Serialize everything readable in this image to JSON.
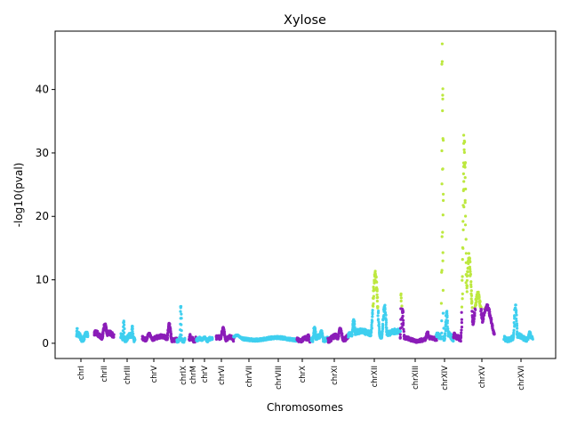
{
  "chart_data": {
    "type": "scatter",
    "title": "Xylose",
    "xlabel": "Chromosomes",
    "ylabel": "-log10(pval)",
    "ylim": [
      -2.4,
      49.2
    ],
    "yticks": [
      0,
      10,
      20,
      30,
      40
    ],
    "grid": false,
    "legend": "none",
    "colors": {
      "cyan": "#3fcfef",
      "purple": "#8b1db8",
      "significant": "#bde83f"
    },
    "categories": [
      "chrI",
      "chrII",
      "chrIII",
      "chrV",
      "chrIX",
      "chrM",
      "chrV",
      "chrVI",
      "chrVII",
      "chrVIII",
      "chrX",
      "chrXI",
      "chrXII",
      "chrXIII",
      "chrXIV",
      "chrXV",
      "chrXVI"
    ],
    "chromosomes": [
      {
        "label": "chrI",
        "color": "cyan",
        "base": 1.0,
        "amp": 0.8,
        "peaks": [
          [
            0.05,
            2.6,
            0.03
          ]
        ]
      },
      {
        "label": "chrII",
        "color": "purple",
        "base": 1.3,
        "amp": 0.7,
        "peaks": [
          [
            0.55,
            3.1,
            0.12
          ]
        ]
      },
      {
        "label": "chrIII",
        "color": "cyan",
        "base": 0.9,
        "amp": 0.7,
        "peaks": [
          [
            0.2,
            3.6,
            0.04
          ],
          [
            0.8,
            2.8,
            0.05
          ]
        ]
      },
      {
        "label": "chrV",
        "color": "purple",
        "base": 0.8,
        "amp": 0.6,
        "peaks": [
          [
            0.78,
            3.2,
            0.05
          ],
          [
            0.2,
            1.6,
            0.08
          ]
        ]
      },
      {
        "label": "chrIX",
        "color": "cyan",
        "base": 0.6,
        "amp": 0.5,
        "peaks": [
          [
            0.5,
            6.0,
            0.08
          ]
        ]
      },
      {
        "label": "chrM",
        "color": "purple",
        "base": 0.6,
        "amp": 0.5,
        "peaks": [
          [
            0.1,
            1.4,
            0.08
          ]
        ]
      },
      {
        "label": "chrV",
        "color": "cyan",
        "base": 0.5,
        "amp": 0.5,
        "peaks": [
          [
            0.5,
            1.0,
            0.15
          ]
        ]
      },
      {
        "label": "chrVI",
        "color": "purple",
        "base": 0.7,
        "amp": 0.6,
        "peaks": [
          [
            0.4,
            2.5,
            0.12
          ]
        ]
      },
      {
        "label": "chrVII",
        "color": "cyan",
        "base": 0.7,
        "amp": 0.4,
        "peaks": [
          [
            0.05,
            1.3,
            0.1
          ]
        ]
      },
      {
        "label": "chrVIII",
        "color": "purple",
        "base": 0.6,
        "amp": 0.5,
        "peaks": [
          [
            0.8,
            1.4,
            0.08
          ]
        ]
      },
      {
        "label": "chrX",
        "color": "cyan",
        "base": 0.8,
        "amp": 0.6,
        "peaks": [
          [
            0.2,
            2.6,
            0.08
          ],
          [
            0.6,
            2.0,
            0.1
          ]
        ]
      },
      {
        "label": "chrXI",
        "color": "purple",
        "base": 0.8,
        "amp": 0.7,
        "peaks": [
          [
            0.6,
            2.4,
            0.1
          ]
        ]
      },
      {
        "label": "chrXII",
        "color": "cyan",
        "base": 1.5,
        "amp": 0.8,
        "peaks": [
          [
            0.1,
            3.8,
            0.03
          ],
          [
            0.52,
            11.2,
            0.06
          ],
          [
            0.7,
            6.0,
            0.04
          ]
        ],
        "sig": [
          0.42,
          0.62
        ]
      },
      {
        "label": "chrXIII",
        "color": "purple",
        "base": 0.6,
        "amp": 0.5,
        "peaks": [
          [
            0.03,
            8.0,
            0.015
          ],
          [
            0.07,
            5.5,
            0.03
          ],
          [
            0.75,
            1.8,
            0.05
          ]
        ],
        "sig": [
          0.0,
          0.06
        ]
      },
      {
        "label": "chrXIV",
        "color": "cyan",
        "base": 1.0,
        "amp": 0.8,
        "peaks": [
          [
            0.35,
            41.5,
            0.035
          ],
          [
            0.6,
            5.0,
            0.08
          ]
        ],
        "sig": [
          0.24,
          0.46
        ],
        "extra": [
          47.2,
          44.4,
          44.0,
          38.5,
          32.0,
          27.5,
          23.5,
          22.5,
          17.5,
          13.0,
          11.5
        ]
      },
      {
        "label": "chrXV",
        "color": "purple",
        "base": 1.0,
        "amp": 0.8,
        "peaks": [
          [
            0.27,
            32.0,
            0.045
          ],
          [
            0.38,
            14.0,
            0.08
          ],
          [
            0.6,
            8.0,
            0.12
          ],
          [
            0.82,
            6.0,
            0.15
          ]
        ],
        "sig": [
          0.2,
          0.8
        ],
        "extra": [
          32.8,
          31.5,
          25.5,
          22.5,
          21.5
        ]
      },
      {
        "label": "chrXVI",
        "color": "cyan",
        "base": 0.9,
        "amp": 0.7,
        "peaks": [
          [
            0.4,
            6.0,
            0.05
          ],
          [
            0.9,
            1.8,
            0.06
          ]
        ]
      }
    ]
  }
}
